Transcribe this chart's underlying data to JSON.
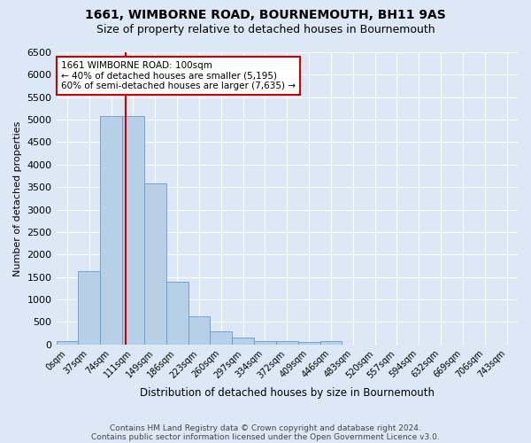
{
  "title1": "1661, WIMBORNE ROAD, BOURNEMOUTH, BH11 9AS",
  "title2": "Size of property relative to detached houses in Bournemouth",
  "xlabel": "Distribution of detached houses by size in Bournemouth",
  "ylabel": "Number of detached properties",
  "footer1": "Contains HM Land Registry data © Crown copyright and database right 2024.",
  "footer2": "Contains public sector information licensed under the Open Government Licence v3.0.",
  "bar_labels": [
    "0sqm",
    "37sqm",
    "74sqm",
    "111sqm",
    "149sqm",
    "186sqm",
    "223sqm",
    "260sqm",
    "297sqm",
    "334sqm",
    "372sqm",
    "409sqm",
    "446sqm",
    "483sqm",
    "520sqm",
    "557sqm",
    "594sqm",
    "632sqm",
    "669sqm",
    "706sqm",
    "743sqm"
  ],
  "bar_values": [
    75,
    1625,
    5075,
    5075,
    3575,
    1400,
    625,
    300,
    150,
    75,
    75,
    50,
    75,
    0,
    0,
    0,
    0,
    0,
    0,
    0,
    0
  ],
  "bar_color": "#b8cfe8",
  "bar_edge_color": "#6699cc",
  "ylim": [
    0,
    6500
  ],
  "yticks": [
    0,
    500,
    1000,
    1500,
    2000,
    2500,
    3000,
    3500,
    4000,
    4500,
    5000,
    5500,
    6000,
    6500
  ],
  "red_line_x": 2.67,
  "annotation_text": "1661 WIMBORNE ROAD: 100sqm\n← 40% of detached houses are smaller (5,195)\n60% of semi-detached houses are larger (7,635) →",
  "annotation_box_color": "#ffffff",
  "annotation_border_color": "#cc0000",
  "background_color": "#dce8f5",
  "grid_color": "#ffffff",
  "title1_fontsize": 10,
  "title2_fontsize": 9,
  "footer_fontsize": 6.5
}
